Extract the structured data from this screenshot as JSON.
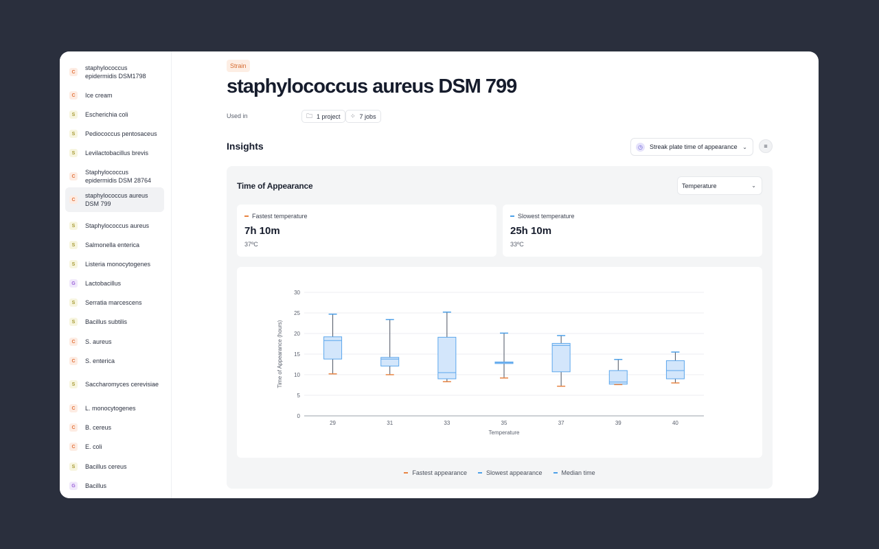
{
  "sidebar": {
    "items": [
      {
        "badge": "C",
        "label": "staphylococcus epidermidis DSM1798"
      },
      {
        "badge": "C",
        "label": "Ice cream"
      },
      {
        "badge": "S",
        "label": "Escherichia coli"
      },
      {
        "badge": "S",
        "label": "Pediococcus pentosaceus"
      },
      {
        "badge": "S",
        "label": "Levilactobacillus brevis"
      },
      {
        "badge": "C",
        "label": "Staphylococcus epidermidis DSM 28764"
      },
      {
        "badge": "C",
        "label": "staphylococcus aureus DSM 799",
        "active": true
      },
      {
        "badge": "S",
        "label": "Staphylococcus aureus"
      },
      {
        "badge": "S",
        "label": "Salmonella enterica"
      },
      {
        "badge": "S",
        "label": "Listeria monocytogenes"
      },
      {
        "badge": "G",
        "label": "Lactobacillus"
      },
      {
        "badge": "S",
        "label": "Serratia marcescens"
      },
      {
        "badge": "S",
        "label": "Bacillus subtilis"
      },
      {
        "badge": "C",
        "label": "S. aureus"
      },
      {
        "badge": "C",
        "label": "S. enterica"
      },
      {
        "badge": "S",
        "label": "Saccharomyces cerevisiae"
      },
      {
        "badge": "C",
        "label": "L. monocytogenes"
      },
      {
        "badge": "C",
        "label": "B. cereus"
      },
      {
        "badge": "C",
        "label": "E. coli"
      },
      {
        "badge": "S",
        "label": "Bacillus cereus"
      },
      {
        "badge": "G",
        "label": "Bacillus"
      }
    ]
  },
  "header": {
    "tag": "Strain",
    "title": "staphylococcus aureus DSM 799",
    "used_in_label": "Used in",
    "project_pill": "1 project",
    "jobs_pill": "7 jobs"
  },
  "insights": {
    "title": "Insights",
    "metric_select": "Streak plate time of appearance",
    "panel_title": "Time of Appearance",
    "group_select": "Temperature",
    "fastest": {
      "label": "Fastest temperature",
      "value": "7h 10m",
      "sub": "37ºC",
      "color": "#e8823f"
    },
    "slowest": {
      "label": "Slowest temperature",
      "value": "25h 10m",
      "sub": "33ºC",
      "color": "#4a9fe8"
    }
  },
  "legend": {
    "fastest": "Fastest appearance",
    "slowest": "Slowest appearance",
    "median": "Median time"
  },
  "chart_data": {
    "type": "boxplot",
    "xlabel": "Temperature",
    "ylabel": "Time of Appearance (hours)",
    "ylim": [
      0,
      30
    ],
    "yticks": [
      0,
      5,
      10,
      15,
      20,
      25,
      30
    ],
    "categories": [
      "29",
      "31",
      "33",
      "35",
      "37",
      "39",
      "40"
    ],
    "boxes": [
      {
        "min": 10.2,
        "q1": 13.8,
        "median": 18.3,
        "q3": 19.2,
        "max": 24.7
      },
      {
        "min": 10.0,
        "q1": 12.1,
        "median": 13.8,
        "q3": 14.2,
        "max": 23.4
      },
      {
        "min": 8.3,
        "q1": 9.0,
        "median": 10.5,
        "q3": 19.1,
        "max": 25.2
      },
      {
        "min": 9.2,
        "q1": 12.7,
        "median": 12.9,
        "q3": 13.1,
        "max": 20.1
      },
      {
        "min": 7.2,
        "q1": 10.7,
        "median": 17.1,
        "q3": 17.6,
        "max": 19.5
      },
      {
        "min": 7.6,
        "q1": 7.7,
        "median": 8.2,
        "q3": 11.0,
        "max": 13.7
      },
      {
        "min": 8.0,
        "q1": 9.0,
        "median": 11.0,
        "q3": 13.4,
        "max": 15.5
      }
    ],
    "colors": {
      "box_fill": "#d3e6fb",
      "box_stroke": "#5aa6ec",
      "whisker": "#4a5160",
      "fastest": "#e8823f",
      "slowest": "#4a9fe8"
    }
  }
}
